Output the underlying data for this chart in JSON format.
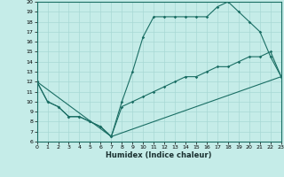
{
  "xlabel": "Humidex (Indice chaleur)",
  "xlim": [
    0,
    23
  ],
  "ylim": [
    6,
    20
  ],
  "xticks": [
    0,
    1,
    2,
    3,
    4,
    5,
    6,
    7,
    8,
    9,
    10,
    11,
    12,
    13,
    14,
    15,
    16,
    17,
    18,
    19,
    20,
    21,
    22,
    23
  ],
  "yticks": [
    6,
    7,
    8,
    9,
    10,
    11,
    12,
    13,
    14,
    15,
    16,
    17,
    18,
    19,
    20
  ],
  "bg_color": "#c5ece8",
  "grid_color": "#a8d8d4",
  "line_color": "#1a6e64",
  "line1_x": [
    0,
    1,
    2,
    3,
    4,
    5,
    6,
    7,
    8,
    9,
    10,
    11,
    12,
    13,
    14,
    15,
    16,
    17,
    18,
    19,
    20,
    21,
    22,
    23
  ],
  "line1_y": [
    12.0,
    10.0,
    9.5,
    8.5,
    8.5,
    8.0,
    7.5,
    6.5,
    10.0,
    13.0,
    16.5,
    18.5,
    18.5,
    18.5,
    18.5,
    18.5,
    18.5,
    19.5,
    20.0,
    19.0,
    18.0,
    17.0,
    14.5,
    12.5
  ],
  "line2_x": [
    0,
    1,
    2,
    3,
    4,
    5,
    6,
    7,
    8,
    9,
    10,
    11,
    12,
    13,
    14,
    15,
    16,
    17,
    18,
    19,
    20,
    21,
    22,
    23
  ],
  "line2_y": [
    12.0,
    10.0,
    9.5,
    8.5,
    8.5,
    8.0,
    7.5,
    6.5,
    9.5,
    10.0,
    10.5,
    11.0,
    11.5,
    12.0,
    12.5,
    12.5,
    13.0,
    13.5,
    13.5,
    14.0,
    14.5,
    14.5,
    15.0,
    12.5
  ],
  "line3_x": [
    0,
    7,
    23
  ],
  "line3_y": [
    12.0,
    6.5,
    12.5
  ]
}
